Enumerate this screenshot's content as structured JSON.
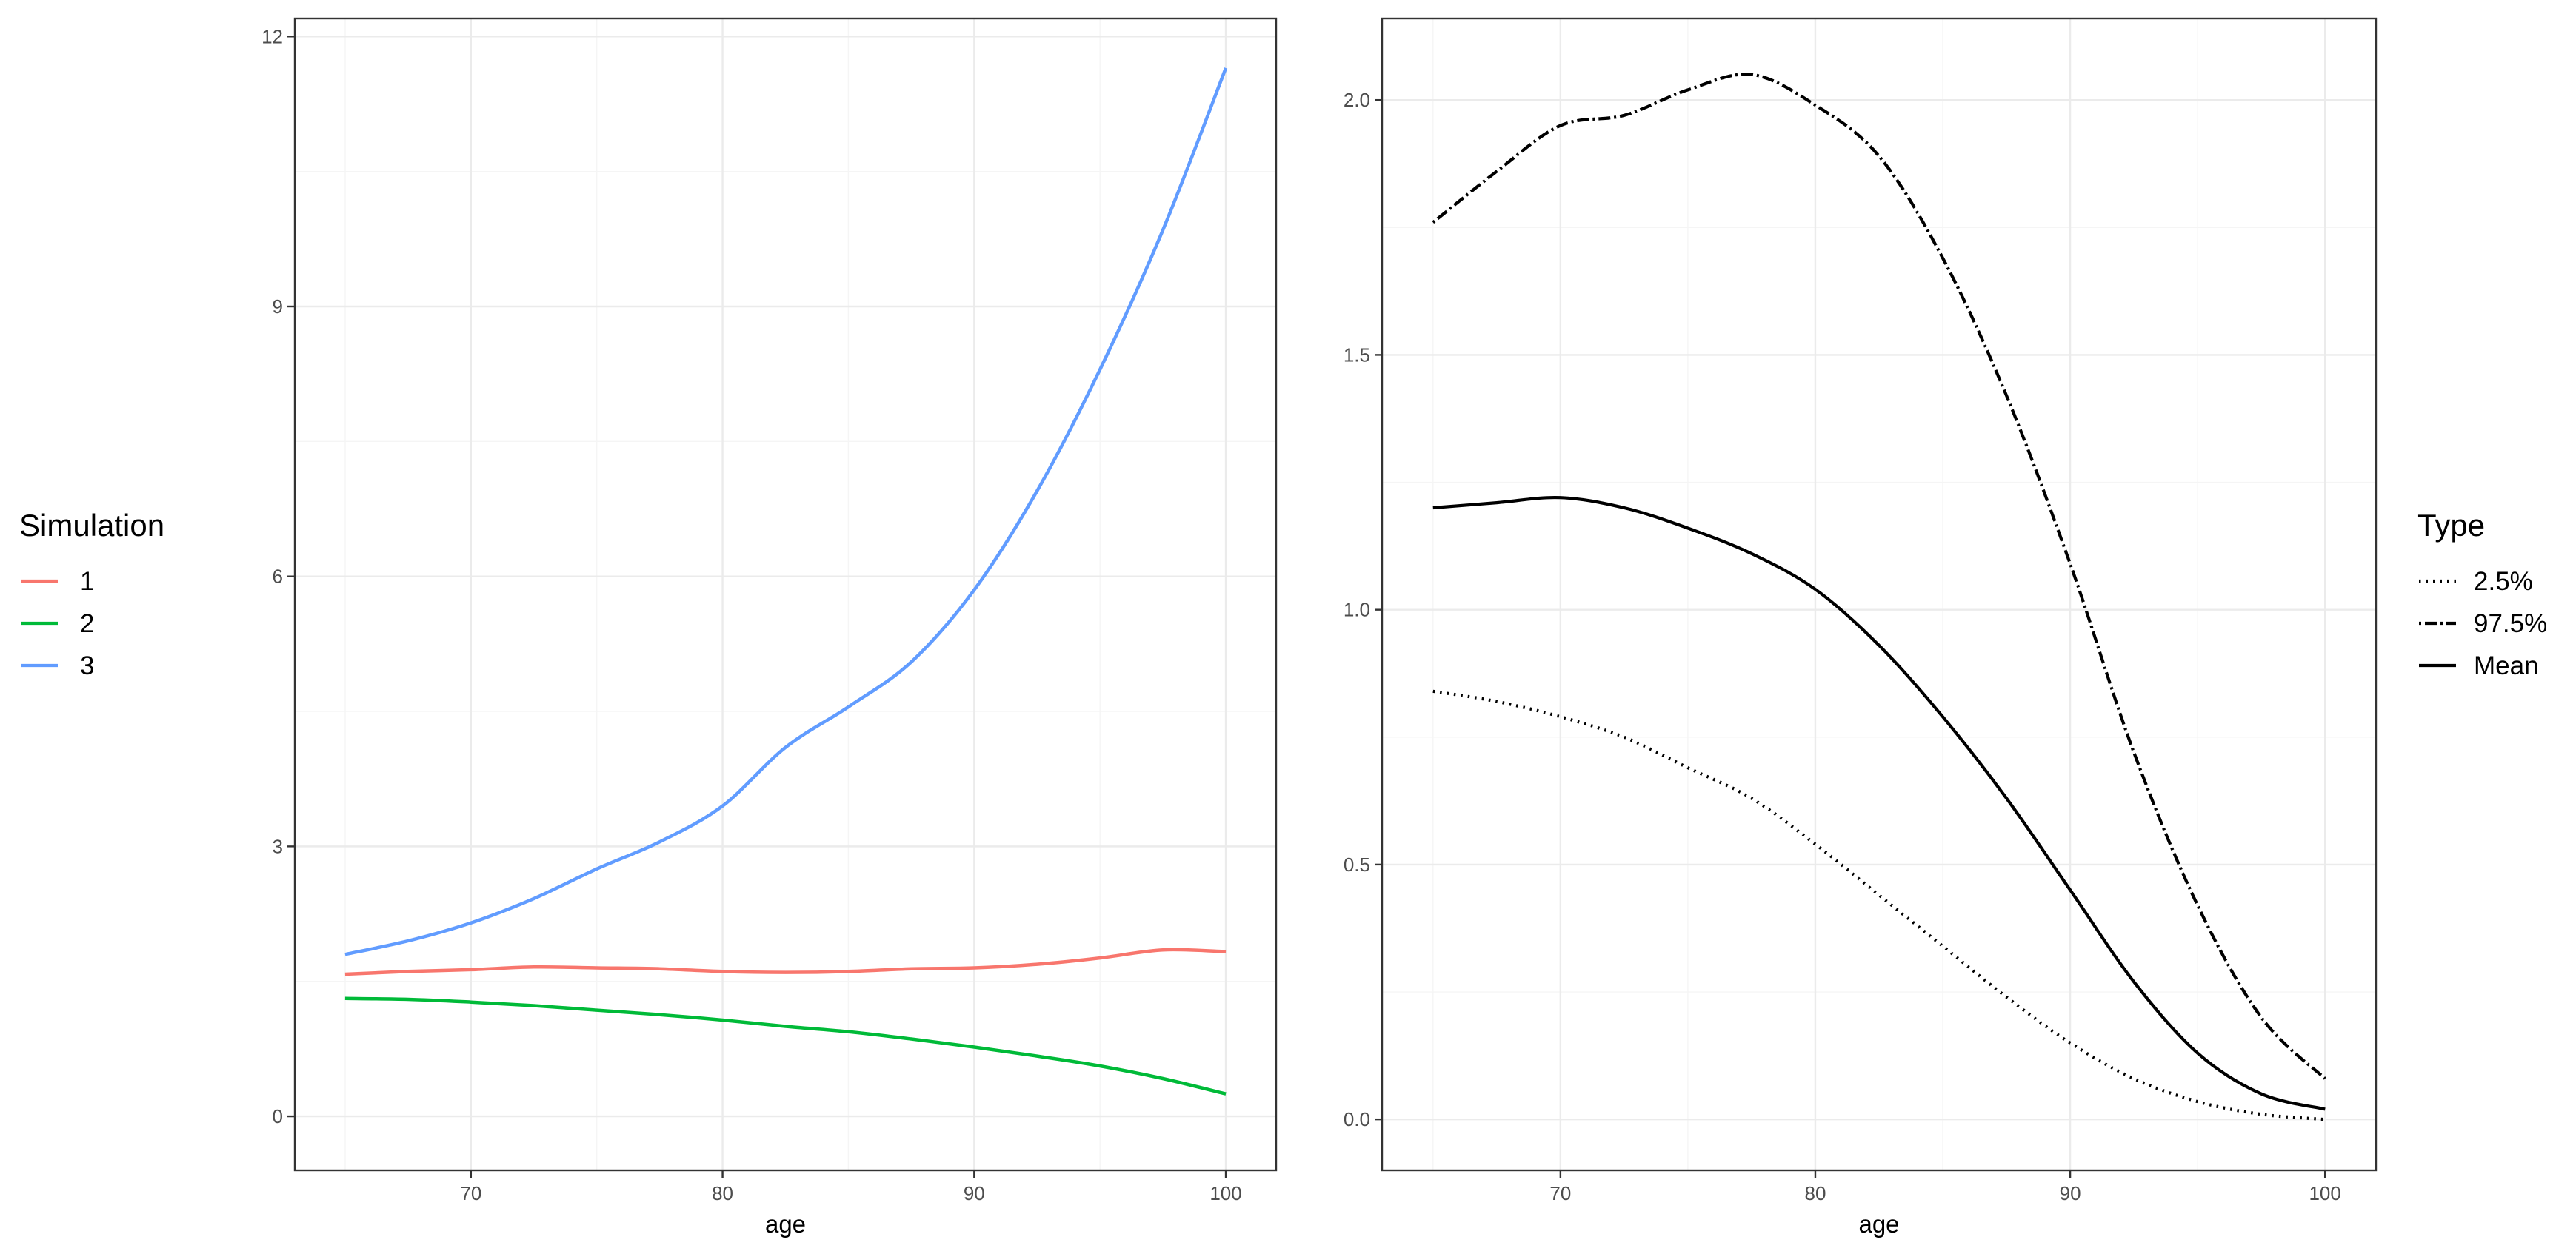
{
  "chart_data": [
    {
      "type": "line",
      "title": "",
      "xlabel": "age",
      "ylabel": "",
      "xlim": [
        63,
        102
      ],
      "ylim": [
        -0.6,
        12.2
      ],
      "x_ticks": [
        70,
        80,
        90,
        100
      ],
      "y_ticks": [
        0,
        3,
        6,
        9,
        12
      ],
      "grid": true,
      "legend": {
        "title": "Simulation",
        "position": "left"
      },
      "series": [
        {
          "name": "1",
          "color": "#F8766D",
          "x": [
            65,
            67.5,
            70,
            72.5,
            75,
            77.5,
            80,
            82.5,
            85,
            87.5,
            90,
            92.5,
            95,
            97.5,
            100
          ],
          "y": [
            1.58,
            1.61,
            1.63,
            1.66,
            1.65,
            1.64,
            1.61,
            1.6,
            1.61,
            1.64,
            1.65,
            1.69,
            1.76,
            1.85,
            1.83
          ]
        },
        {
          "name": "2",
          "color": "#00BA38",
          "x": [
            65,
            67.5,
            70,
            72.5,
            75,
            77.5,
            80,
            82.5,
            85,
            87.5,
            90,
            92.5,
            95,
            97.5,
            100
          ],
          "y": [
            1.31,
            1.3,
            1.27,
            1.23,
            1.18,
            1.13,
            1.07,
            1.0,
            0.94,
            0.86,
            0.77,
            0.67,
            0.56,
            0.42,
            0.25
          ]
        },
        {
          "name": "3",
          "color": "#619CFF",
          "x": [
            65,
            67.5,
            70,
            72.5,
            75,
            77.5,
            80,
            82.5,
            85,
            87.5,
            90,
            92.5,
            95,
            97.5,
            100
          ],
          "y": [
            1.8,
            1.95,
            2.15,
            2.42,
            2.75,
            3.05,
            3.45,
            4.1,
            4.55,
            5.05,
            5.85,
            6.95,
            8.3,
            9.85,
            11.65
          ]
        }
      ]
    },
    {
      "type": "line",
      "title": "",
      "xlabel": "age",
      "ylabel": "",
      "xlim": [
        63,
        102
      ],
      "ylim": [
        -0.1,
        2.16
      ],
      "x_ticks": [
        70,
        80,
        90,
        100
      ],
      "y_ticks": [
        0.0,
        0.5,
        1.0,
        1.5,
        2.0
      ],
      "y_tick_labels": [
        "0.0",
        "0.5",
        "1.0",
        "1.5",
        "2.0"
      ],
      "grid": true,
      "legend": {
        "title": "Type",
        "position": "right"
      },
      "series": [
        {
          "name": "2.5%",
          "linetype": "dotted",
          "x": [
            65,
            67.5,
            70,
            72.5,
            75,
            77.5,
            80,
            82.5,
            85,
            87.5,
            90,
            92.5,
            95,
            97.5,
            100
          ],
          "y": [
            0.84,
            0.82,
            0.79,
            0.75,
            0.69,
            0.63,
            0.54,
            0.44,
            0.34,
            0.24,
            0.15,
            0.08,
            0.035,
            0.01,
            0.0
          ]
        },
        {
          "name": "97.5%",
          "linetype": "dotdash",
          "x": [
            65,
            67.5,
            70,
            72.5,
            75,
            77.5,
            80,
            82.5,
            85,
            87.5,
            90,
            92.5,
            95,
            97.5,
            100
          ],
          "y": [
            1.76,
            1.86,
            1.95,
            1.97,
            2.02,
            2.05,
            1.99,
            1.89,
            1.69,
            1.42,
            1.09,
            0.72,
            0.42,
            0.2,
            0.08
          ]
        },
        {
          "name": "Mean",
          "linetype": "solid",
          "x": [
            65,
            67.5,
            70,
            72.5,
            75,
            77.5,
            80,
            82.5,
            85,
            87.5,
            90,
            92.5,
            95,
            97.5,
            100
          ],
          "y": [
            1.2,
            1.21,
            1.22,
            1.2,
            1.16,
            1.11,
            1.04,
            0.93,
            0.79,
            0.63,
            0.45,
            0.27,
            0.13,
            0.05,
            0.02
          ]
        }
      ]
    }
  ]
}
